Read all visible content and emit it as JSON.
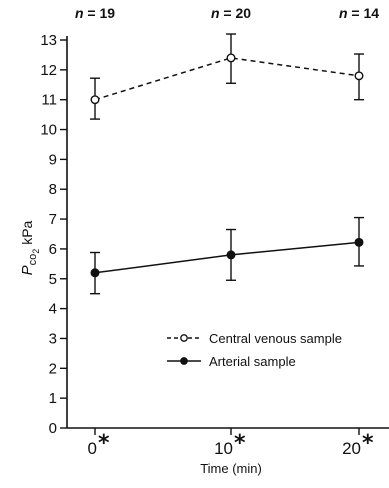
{
  "chart_data": {
    "type": "line",
    "xlabel": "Time (min)",
    "ylabel": "Pco2 kPa",
    "ylabel_parts": {
      "main": "P",
      "sub1": "co",
      "sub2": "2",
      "unit": " kPa"
    },
    "ylim": [
      0,
      13
    ],
    "yticks": [
      "0",
      "1",
      "2",
      "3",
      "4",
      "5",
      "6",
      "7",
      "8",
      "9",
      "10",
      "11",
      "12",
      "13"
    ],
    "x": [
      0,
      10,
      20
    ],
    "xtick_labels": [
      "0",
      "10",
      "20"
    ],
    "xtick_marker": "*",
    "n_labels": [
      {
        "var": "n",
        "eq": " = ",
        "value": "19"
      },
      {
        "var": "n",
        "eq": " = ",
        "value": "20"
      },
      {
        "var": "n",
        "eq": " = ",
        "value": "14"
      }
    ],
    "series": [
      {
        "name": "Central venous sample",
        "values": [
          11.0,
          12.4,
          11.8
        ],
        "error_low": [
          10.35,
          11.55,
          11.0
        ],
        "error_high": [
          11.72,
          13.2,
          12.53
        ],
        "line_style": "dashed",
        "marker": "open-circle",
        "color": "#111111"
      },
      {
        "name": "Arterial sample",
        "values": [
          5.2,
          5.8,
          6.22
        ],
        "error_low": [
          4.5,
          4.95,
          5.43
        ],
        "error_high": [
          5.88,
          6.65,
          7.05
        ],
        "line_style": "solid",
        "marker": "filled-circle",
        "color": "#111111"
      }
    ],
    "grid": false,
    "legend_position": "lower-right"
  }
}
